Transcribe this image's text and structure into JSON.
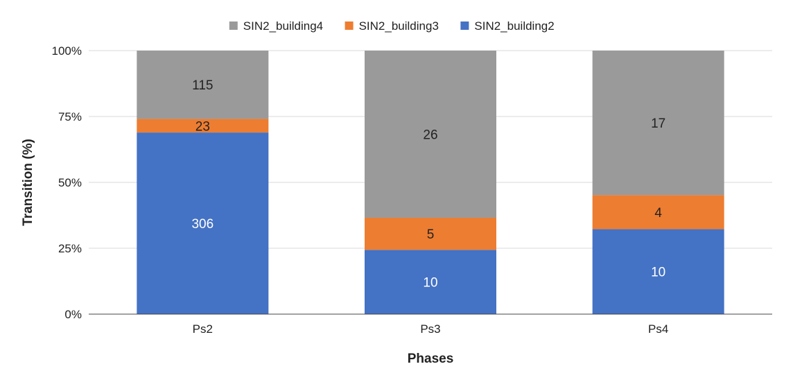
{
  "chart_data": {
    "type": "bar",
    "stacked": "percent",
    "categories": [
      "Ps2",
      "Ps3",
      "Ps4"
    ],
    "series": [
      {
        "name": "SIN2_building2",
        "values": [
          306,
          10,
          10
        ],
        "color": "#4472c4",
        "label_color": "#ffffff"
      },
      {
        "name": "SIN2_building3",
        "values": [
          23,
          5,
          4
        ],
        "color": "#ed7d31",
        "label_color": "#222222"
      },
      {
        "name": "SIN2_building4",
        "values": [
          115,
          26,
          17
        ],
        "color": "#9a9a9a",
        "label_color": "#222222"
      }
    ],
    "legend_order": [
      "SIN2_building4",
      "SIN2_building3",
      "SIN2_building2"
    ],
    "legend_position": "top",
    "xlabel": "Phases",
    "ylabel": "Transition (%)",
    "ylim": [
      0,
      100
    ],
    "yticks": [
      "0%",
      "25%",
      "50%",
      "75%",
      "100%"
    ],
    "grid": "horizontal",
    "colors": {
      "gridline": "#d9d9d9",
      "axis": "#444444",
      "text": "#222222"
    }
  }
}
